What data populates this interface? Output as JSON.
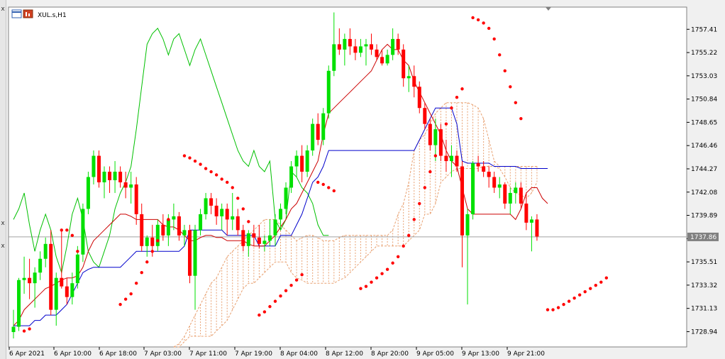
{
  "window": {
    "symbol_label": "XUL.s,H1"
  },
  "left_strip": {
    "marks": [
      "x",
      "x",
      "x"
    ]
  },
  "chart_data": {
    "type": "candlestick",
    "title": "XUL.s,H1",
    "ylim": [
      1727.5,
      1759.5
    ],
    "yticks": [
      "1757.41",
      "1755.22",
      "1753.03",
      "1750.84",
      "1748.65",
      "1746.46",
      "1744.27",
      "1742.08",
      "1739.89",
      "1737.70",
      "1735.51",
      "1733.32",
      "1731.13",
      "1728.94"
    ],
    "xticks": [
      "6 Apr 2021",
      "6 Apr 10:00",
      "6 Apr 18:00",
      "7 Apr 03:00",
      "7 Apr 11:00",
      "7 Apr 19:00",
      "8 Apr 04:00",
      "8 Apr 12:00",
      "8 Apr 20:00",
      "9 Apr 05:00",
      "9 Apr 13:00",
      "9 Apr 21:00"
    ],
    "current_price": "1737.86",
    "colors": {
      "bull": "#00e000",
      "bear": "#ff0000",
      "tenkan": "#cc0000",
      "kijun": "#0000cc",
      "chikou": "#00c000",
      "sar": "#ff0000",
      "cloud": "#e8a070",
      "price_line": "#a0a0a0"
    },
    "candles": [
      [
        1728.9,
        1731.0,
        1728.3,
        1729.4
      ],
      [
        1729.4,
        1734.0,
        1729.0,
        1733.8
      ],
      [
        1733.8,
        1736.0,
        1732.5,
        1734.0
      ],
      [
        1734.0,
        1735.8,
        1732.0,
        1733.5
      ],
      [
        1733.5,
        1735.0,
        1731.2,
        1734.5
      ],
      [
        1734.5,
        1736.5,
        1733.8,
        1735.8
      ],
      [
        1735.8,
        1737.8,
        1735.0,
        1737.2
      ],
      [
        1737.2,
        1738.5,
        1730.5,
        1731.0
      ],
      [
        1731.0,
        1734.5,
        1729.5,
        1734.0
      ],
      [
        1734.0,
        1738.5,
        1733.0,
        1733.2
      ],
      [
        1733.2,
        1734.0,
        1731.5,
        1732.2
      ],
      [
        1732.2,
        1734.5,
        1731.5,
        1733.5
      ],
      [
        1733.5,
        1737.0,
        1733.0,
        1736.2
      ],
      [
        1736.2,
        1741.0,
        1735.5,
        1740.5
      ],
      [
        1740.5,
        1744.0,
        1740.0,
        1743.5
      ],
      [
        1743.5,
        1746.0,
        1742.8,
        1745.5
      ],
      [
        1745.5,
        1746.0,
        1742.5,
        1743.0
      ],
      [
        1743.0,
        1744.5,
        1741.5,
        1744.0
      ],
      [
        1744.0,
        1744.5,
        1742.0,
        1743.2
      ],
      [
        1743.2,
        1745.0,
        1742.0,
        1744.0
      ],
      [
        1744.0,
        1744.5,
        1742.5,
        1743.0
      ],
      [
        1743.0,
        1744.0,
        1741.5,
        1742.5
      ],
      [
        1742.5,
        1744.0,
        1741.0,
        1742.8
      ],
      [
        1742.8,
        1743.5,
        1739.0,
        1740.0
      ],
      [
        1740.0,
        1741.0,
        1736.5,
        1737.0
      ],
      [
        1737.0,
        1738.0,
        1736.0,
        1737.8
      ],
      [
        1737.8,
        1739.0,
        1736.0,
        1737.0
      ],
      [
        1737.0,
        1739.5,
        1736.5,
        1739.0
      ],
      [
        1739.0,
        1740.0,
        1737.5,
        1738.0
      ],
      [
        1738.0,
        1740.0,
        1737.0,
        1739.5
      ],
      [
        1739.5,
        1741.0,
        1738.5,
        1739.8
      ],
      [
        1739.8,
        1740.2,
        1737.5,
        1738.0
      ],
      [
        1738.0,
        1739.0,
        1737.0,
        1738.5
      ],
      [
        1738.5,
        1739.0,
        1733.5,
        1734.2
      ],
      [
        1734.2,
        1739.0,
        1731.0,
        1738.5
      ],
      [
        1738.5,
        1740.5,
        1738.0,
        1740.0
      ],
      [
        1740.0,
        1742.0,
        1739.5,
        1741.5
      ],
      [
        1741.5,
        1742.0,
        1740.0,
        1740.8
      ],
      [
        1740.8,
        1741.5,
        1739.0,
        1739.8
      ],
      [
        1739.8,
        1741.0,
        1738.5,
        1740.5
      ],
      [
        1740.5,
        1741.0,
        1738.0,
        1739.5
      ],
      [
        1739.5,
        1742.0,
        1738.5,
        1739.8
      ],
      [
        1739.8,
        1740.5,
        1738.0,
        1738.5
      ],
      [
        1738.5,
        1739.0,
        1736.5,
        1737.0
      ],
      [
        1737.0,
        1738.5,
        1736.0,
        1738.2
      ],
      [
        1738.2,
        1739.0,
        1737.0,
        1737.8
      ],
      [
        1737.8,
        1739.0,
        1736.8,
        1737.2
      ],
      [
        1737.2,
        1738.0,
        1736.5,
        1737.5
      ],
      [
        1737.5,
        1739.5,
        1737.0,
        1738.0
      ],
      [
        1738.0,
        1740.0,
        1737.0,
        1739.5
      ],
      [
        1739.5,
        1741.0,
        1738.5,
        1740.5
      ],
      [
        1740.5,
        1743.0,
        1740.0,
        1742.5
      ],
      [
        1742.5,
        1745.0,
        1742.0,
        1744.5
      ],
      [
        1744.5,
        1746.0,
        1743.5,
        1745.5
      ],
      [
        1745.5,
        1746.5,
        1743.0,
        1744.0
      ],
      [
        1744.0,
        1746.5,
        1743.5,
        1746.0
      ],
      [
        1746.0,
        1749.0,
        1745.5,
        1748.5
      ],
      [
        1748.5,
        1749.5,
        1746.5,
        1747.0
      ],
      [
        1747.0,
        1750.0,
        1746.5,
        1749.5
      ],
      [
        1749.5,
        1754.0,
        1749.0,
        1753.5
      ],
      [
        1753.5,
        1759.0,
        1753.0,
        1756.0
      ],
      [
        1756.0,
        1757.5,
        1755.0,
        1755.5
      ],
      [
        1755.5,
        1757.0,
        1754.0,
        1756.5
      ],
      [
        1756.5,
        1757.5,
        1755.0,
        1755.8
      ],
      [
        1755.8,
        1756.5,
        1754.5,
        1755.2
      ],
      [
        1755.2,
        1756.5,
        1754.8,
        1755.8
      ],
      [
        1755.8,
        1756.5,
        1754.0,
        1756.0
      ],
      [
        1756.0,
        1757.0,
        1755.0,
        1755.5
      ],
      [
        1755.5,
        1756.0,
        1754.5,
        1754.8
      ],
      [
        1754.8,
        1755.5,
        1754.0,
        1754.2
      ],
      [
        1754.2,
        1755.5,
        1754.0,
        1755.0
      ],
      [
        1755.0,
        1757.5,
        1754.5,
        1756.5
      ],
      [
        1756.5,
        1757.0,
        1755.0,
        1755.5
      ],
      [
        1755.5,
        1756.0,
        1752.0,
        1752.8
      ],
      [
        1752.8,
        1754.0,
        1751.5,
        1753.0
      ],
      [
        1753.0,
        1754.0,
        1751.0,
        1752.0
      ],
      [
        1752.0,
        1752.5,
        1749.5,
        1750.0
      ],
      [
        1750.0,
        1750.5,
        1748.0,
        1748.5
      ],
      [
        1748.5,
        1749.0,
        1746.0,
        1746.5
      ],
      [
        1746.5,
        1749.0,
        1745.0,
        1748.0
      ],
      [
        1748.0,
        1748.5,
        1745.0,
        1745.5
      ],
      [
        1745.5,
        1747.0,
        1744.0,
        1745.0
      ],
      [
        1745.0,
        1746.5,
        1743.5,
        1745.5
      ],
      [
        1745.5,
        1746.0,
        1744.0,
        1744.5
      ],
      [
        1744.5,
        1745.0,
        1735.0,
        1738.0
      ],
      [
        1738.0,
        1740.5,
        1731.5,
        1740.0
      ],
      [
        1740.0,
        1745.0,
        1739.5,
        1744.8
      ],
      [
        1744.8,
        1745.5,
        1744.0,
        1744.5
      ],
      [
        1744.5,
        1745.0,
        1743.5,
        1744.0
      ],
      [
        1744.0,
        1744.5,
        1742.5,
        1743.5
      ],
      [
        1743.5,
        1744.0,
        1742.0,
        1742.5
      ],
      [
        1742.5,
        1743.5,
        1741.5,
        1742.8
      ],
      [
        1742.8,
        1743.0,
        1740.5,
        1741.0
      ],
      [
        1741.0,
        1742.5,
        1740.0,
        1742.0
      ],
      [
        1742.0,
        1743.0,
        1741.0,
        1742.5
      ],
      [
        1742.5,
        1743.0,
        1740.5,
        1741.0
      ],
      [
        1741.0,
        1742.0,
        1738.5,
        1739.2
      ],
      [
        1739.2,
        1739.8,
        1736.5,
        1739.5
      ],
      [
        1739.5,
        1740.0,
        1737.5,
        1737.9
      ]
    ],
    "tenkan": [
      1729.5,
      1730.0,
      1731.0,
      1731.5,
      1732.0,
      1732.5,
      1733.0,
      1733.2,
      1733.5,
      1733.8,
      1734.0,
      1734.0,
      1734.2,
      1735.0,
      1736.5,
      1737.5,
      1738.0,
      1738.5,
      1739.0,
      1739.5,
      1740.0,
      1740.0,
      1739.8,
      1739.5,
      1739.5,
      1739.5,
      1739.5,
      1739.5,
      1739.0,
      1738.8,
      1738.8,
      1738.5,
      1738.0,
      1737.5,
      1737.5,
      1737.8,
      1738.0,
      1738.0,
      1737.8,
      1737.8,
      1737.5,
      1737.5,
      1737.5,
      1737.5,
      1737.2,
      1737.0,
      1737.0,
      1737.0,
      1737.5,
      1738.0,
      1738.8,
      1739.5,
      1740.5,
      1741.0,
      1742.0,
      1743.0,
      1744.0,
      1745.0,
      1747.5,
      1749.5,
      1750.0,
      1750.5,
      1751.0,
      1751.5,
      1752.0,
      1752.5,
      1753.0,
      1753.5,
      1754.5,
      1755.5,
      1756.0,
      1755.5,
      1755.5,
      1754.5,
      1754.0,
      1752.5,
      1751.5,
      1750.5,
      1749.5,
      1748.5,
      1747.5,
      1746.0,
      1745.0,
      1744.5,
      1742.5,
      1740.5,
      1740.0,
      1740.0,
      1740.0,
      1740.0,
      1740.0,
      1740.0,
      1740.0,
      1740.0,
      1739.5,
      1740.5,
      1742.0,
      1742.5,
      1742.5,
      1741.5,
      1741.0
    ],
    "kijun": [
      1729.5,
      1729.5,
      1729.5,
      1729.5,
      1730.0,
      1730.0,
      1730.5,
      1730.5,
      1730.5,
      1731.0,
      1731.5,
      1732.5,
      1733.5,
      1734.5,
      1734.8,
      1735.0,
      1735.0,
      1735.0,
      1735.0,
      1735.0,
      1735.0,
      1735.5,
      1736.0,
      1736.5,
      1736.5,
      1736.5,
      1736.5,
      1736.5,
      1736.5,
      1736.5,
      1736.5,
      1736.5,
      1737.0,
      1738.5,
      1738.5,
      1738.5,
      1738.5,
      1738.5,
      1738.5,
      1738.5,
      1738.0,
      1738.0,
      1738.0,
      1738.0,
      1738.0,
      1738.0,
      1737.0,
      1737.0,
      1737.0,
      1737.0,
      1738.0,
      1738.0,
      1738.0,
      1739.0,
      1740.0,
      1741.5,
      1743.0,
      1743.5,
      1744.5,
      1746.0,
      1746.0,
      1746.0,
      1746.0,
      1746.0,
      1746.0,
      1746.0,
      1746.0,
      1746.0,
      1746.0,
      1746.0,
      1746.0,
      1746.0,
      1746.0,
      1746.0,
      1746.0,
      1746.0,
      1747.0,
      1748.0,
      1749.0,
      1750.0,
      1750.0,
      1750.0,
      1750.0,
      1748.5,
      1745.0,
      1744.8,
      1744.8,
      1744.8,
      1744.8,
      1744.8,
      1744.5,
      1744.5,
      1744.5,
      1744.5,
      1744.5,
      1744.3,
      1744.3,
      1744.3,
      1744.3,
      1744.3,
      1744.3
    ],
    "chikou": [
      1739.5,
      1740.5,
      1742.0,
      1739.0,
      1736.5,
      1738.5,
      1740.0,
      1738.5,
      1736.0,
      1734.5,
      1737.0,
      1740.0,
      1741.5,
      1739.5,
      1736.5,
      1735.5,
      1735.0,
      1736.5,
      1738.0,
      1740.5,
      1742.0,
      1743.0,
      1744.5,
      1748.0,
      1752.0,
      1756.0,
      1757.0,
      1757.5,
      1756.5,
      1755.0,
      1756.5,
      1757.0,
      1755.5,
      1754.0,
      1755.5,
      1756.5,
      1755.0,
      1753.5,
      1752.0,
      1750.5,
      1749.0,
      1747.5,
      1746.0,
      1745.0,
      1744.5,
      1746.0,
      1744.5,
      1744.0,
      1745.0,
      1739.5,
      1738.5,
      1739.5,
      1744.0,
      1743.5,
      1742.5,
      1742.0,
      1741.0,
      1739.0,
      1738.0,
      1738.0
    ],
    "cloud": [
      [
        1727.5,
        1727.5
      ],
      [
        1727.5,
        1727.8
      ],
      [
        1728.0,
        1728.5
      ],
      [
        1728.5,
        1729.5
      ],
      [
        1728.5,
        1730.5
      ],
      [
        1728.5,
        1731.5
      ],
      [
        1728.5,
        1732.5
      ],
      [
        1728.5,
        1733.5
      ],
      [
        1729.0,
        1734.0
      ],
      [
        1729.5,
        1735.0
      ],
      [
        1730.0,
        1736.0
      ],
      [
        1731.0,
        1736.5
      ],
      [
        1732.0,
        1737.0
      ],
      [
        1733.0,
        1737.5
      ],
      [
        1733.5,
        1738.0
      ],
      [
        1733.5,
        1738.5
      ],
      [
        1734.0,
        1739.0
      ],
      [
        1734.5,
        1739.5
      ],
      [
        1735.0,
        1739.5
      ],
      [
        1735.5,
        1739.5
      ],
      [
        1735.5,
        1739.0
      ],
      [
        1735.5,
        1738.5
      ],
      [
        1734.5,
        1738.0
      ],
      [
        1734.0,
        1737.5
      ],
      [
        1733.8,
        1737.8
      ],
      [
        1733.5,
        1738.0
      ],
      [
        1733.5,
        1738.0
      ],
      [
        1733.5,
        1737.8
      ],
      [
        1733.5,
        1737.5
      ],
      [
        1733.5,
        1737.5
      ],
      [
        1733.5,
        1737.5
      ],
      [
        1733.8,
        1737.8
      ],
      [
        1734.0,
        1738.0
      ],
      [
        1734.5,
        1738.0
      ],
      [
        1735.0,
        1738.0
      ],
      [
        1735.5,
        1738.0
      ],
      [
        1736.0,
        1738.0
      ],
      [
        1736.5,
        1738.0
      ],
      [
        1737.0,
        1738.0
      ],
      [
        1737.0,
        1738.0
      ],
      [
        1737.0,
        1738.0
      ],
      [
        1737.0,
        1738.5
      ],
      [
        1737.0,
        1740.0
      ],
      [
        1737.0,
        1741.0
      ],
      [
        1737.5,
        1743.0
      ],
      [
        1738.0,
        1746.0
      ],
      [
        1738.5,
        1747.0
      ],
      [
        1740.0,
        1747.5
      ],
      [
        1740.0,
        1748.5
      ],
      [
        1741.0,
        1749.5
      ],
      [
        1743.0,
        1750.0
      ],
      [
        1743.5,
        1750.5
      ],
      [
        1744.0,
        1750.5
      ],
      [
        1744.3,
        1750.5
      ],
      [
        1744.3,
        1750.5
      ],
      [
        1744.3,
        1750.5
      ],
      [
        1744.3,
        1750.3
      ],
      [
        1744.3,
        1750.0
      ],
      [
        1744.5,
        1749.0
      ],
      [
        1744.5,
        1747.0
      ],
      [
        1744.5,
        1745.0
      ],
      [
        1744.3,
        1744.5
      ],
      [
        1743.5,
        1744.5
      ],
      [
        1742.5,
        1744.5
      ],
      [
        1742.0,
        1744.5
      ],
      [
        1741.8,
        1744.5
      ],
      [
        1741.5,
        1744.5
      ],
      [
        1742.0,
        1744.5
      ],
      [
        1743.0,
        1744.5
      ]
    ],
    "sar": [
      null,
      null,
      1729.0,
      1729.2,
      null,
      null,
      null,
      null,
      null,
      1738.5,
      1738.5,
      1738.0,
      1736.5,
      null,
      null,
      null,
      null,
      null,
      null,
      null,
      1731.5,
      1732.0,
      1732.5,
      1733.5,
      1734.5,
      1735.5,
      1736.5,
      1737.5,
      1738.5,
      1739.5,
      null,
      null,
      1745.5,
      1745.3,
      1745.0,
      1744.7,
      1744.3,
      1744.0,
      1743.7,
      1743.3,
      1743.0,
      1742.5,
      1741.5,
      1740.5,
      1739.3,
      null,
      1730.5,
      1730.8,
      1731.3,
      1731.8,
      1732.3,
      1732.8,
      1733.3,
      1733.8,
      1734.3,
      null,
      null,
      1743.0,
      1742.8,
      1742.5,
      1742.2,
      null,
      null,
      null,
      null,
      1733.0,
      1733.2,
      1733.6,
      1734.0,
      1734.4,
      1734.8,
      1735.4,
      1736.0,
      1737.0,
      1738.0,
      1739.5,
      1741.0,
      1742.5,
      1744.0,
      1745.5,
      1747.0,
      1748.5,
      1750.0,
      1751.0,
      1751.8,
      null,
      1758.5,
      1758.3,
      1758.0,
      1757.5,
      1756.5,
      1755.0,
      1753.5,
      1752.0,
      1750.5,
      1749.0,
      null,
      null,
      null,
      null,
      1731.0,
      1731.0,
      1731.2,
      1731.5,
      1731.8,
      1732.1,
      1732.4,
      1732.7,
      1733.0,
      1733.3,
      1733.6,
      1734.0
    ]
  }
}
